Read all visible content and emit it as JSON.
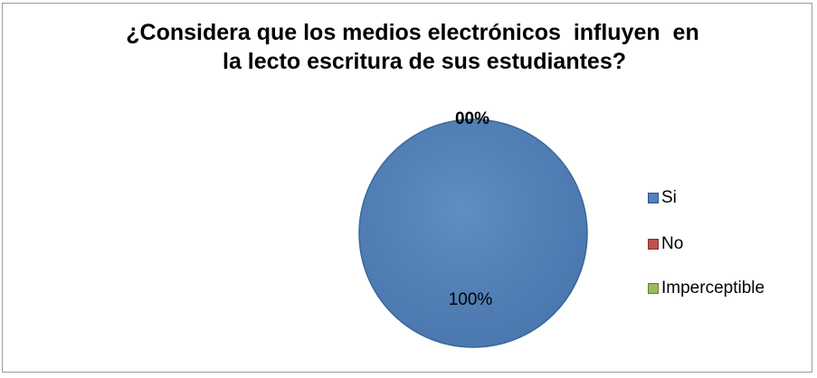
{
  "chart_data": {
    "type": "pie",
    "title_line1": "¿Considera que los medios electrónicos  influyen  en",
    "title_line2": "la lecto escritura de sus estudiantes?",
    "categories": [
      "Si",
      "No",
      "Imperceptible"
    ],
    "values": [
      100,
      0,
      0
    ],
    "colors": [
      "#4f81bd",
      "#c0504d",
      "#9bbb59"
    ],
    "data_labels": [
      "100%",
      "00%",
      ""
    ],
    "legend_position": "right"
  }
}
